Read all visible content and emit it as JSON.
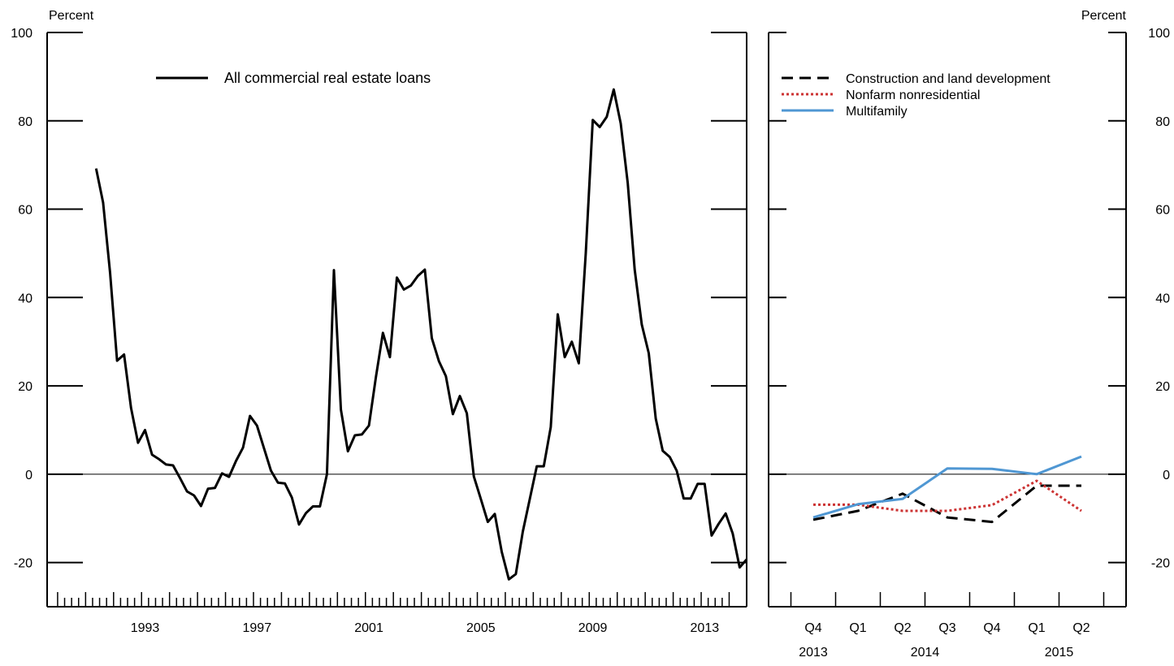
{
  "chart_data": [
    {
      "type": "line",
      "ylabel": "Percent",
      "ylim": [
        -30,
        100
      ],
      "yticks": [
        -20,
        0,
        20,
        40,
        60,
        80,
        100
      ],
      "xlim": [
        1989.5,
        2014.5
      ],
      "xticks": [
        1993,
        1997,
        2001,
        2005,
        2009,
        2013
      ],
      "xtick_labels": [
        "1993",
        "1997",
        "2001",
        "2005",
        "2009",
        "2013"
      ],
      "legend_position": "top-left",
      "series": [
        {
          "name": "All commercial real estate loans",
          "color": "#000000",
          "style": "solid",
          "points": [
            [
              1991.25,
              69.2
            ],
            [
              1991.5,
              61.5
            ],
            [
              1991.75,
              45.6
            ],
            [
              1992.0,
              25.7
            ],
            [
              1992.25,
              27.1
            ],
            [
              1992.5,
              15.0
            ],
            [
              1992.75,
              7.1
            ],
            [
              1993.0,
              10.0
            ],
            [
              1993.25,
              4.4
            ],
            [
              1993.5,
              3.4
            ],
            [
              1993.75,
              2.2
            ],
            [
              1994.0,
              2.0
            ],
            [
              1994.25,
              -0.9
            ],
            [
              1994.5,
              -3.9
            ],
            [
              1994.75,
              -4.8
            ],
            [
              1995.0,
              -7.2
            ],
            [
              1995.25,
              -3.3
            ],
            [
              1995.5,
              -3.1
            ],
            [
              1995.75,
              0.2
            ],
            [
              1996.0,
              -0.6
            ],
            [
              1996.25,
              3.0
            ],
            [
              1996.5,
              6.0
            ],
            [
              1996.75,
              13.2
            ],
            [
              1997.0,
              11.0
            ],
            [
              1997.25,
              5.9
            ],
            [
              1997.5,
              0.8
            ],
            [
              1997.75,
              -1.9
            ],
            [
              1998.0,
              -2.1
            ],
            [
              1998.25,
              -5.3
            ],
            [
              1998.5,
              -11.4
            ],
            [
              1998.75,
              -8.8
            ],
            [
              1999.0,
              -7.3
            ],
            [
              1999.25,
              -7.3
            ],
            [
              1999.5,
              0.0
            ],
            [
              1999.75,
              46.2
            ],
            [
              2000.0,
              14.6
            ],
            [
              2000.25,
              5.2
            ],
            [
              2000.5,
              8.8
            ],
            [
              2000.75,
              9.0
            ],
            [
              2001.0,
              11.0
            ],
            [
              2001.25,
              22.0
            ],
            [
              2001.5,
              32.0
            ],
            [
              2001.75,
              26.5
            ],
            [
              2002.0,
              44.5
            ],
            [
              2002.25,
              41.8
            ],
            [
              2002.5,
              42.7
            ],
            [
              2002.75,
              44.9
            ],
            [
              2003.0,
              46.3
            ],
            [
              2003.25,
              30.8
            ],
            [
              2003.5,
              25.6
            ],
            [
              2003.75,
              22.2
            ],
            [
              2004.0,
              13.6
            ],
            [
              2004.25,
              17.7
            ],
            [
              2004.5,
              13.8
            ],
            [
              2004.75,
              -0.5
            ],
            [
              2005.0,
              -5.6
            ],
            [
              2005.25,
              -10.8
            ],
            [
              2005.5,
              -9.0
            ],
            [
              2005.75,
              -17.6
            ],
            [
              2006.0,
              -23.8
            ],
            [
              2006.25,
              -22.6
            ],
            [
              2006.5,
              -13.0
            ],
            [
              2006.75,
              -5.6
            ],
            [
              2007.0,
              1.8
            ],
            [
              2007.25,
              1.8
            ],
            [
              2007.5,
              10.7
            ],
            [
              2007.75,
              36.2
            ],
            [
              2008.0,
              26.5
            ],
            [
              2008.25,
              30.0
            ],
            [
              2008.5,
              25.1
            ],
            [
              2008.75,
              50.1
            ],
            [
              2009.0,
              80.2
            ],
            [
              2009.25,
              78.6
            ],
            [
              2009.5,
              80.9
            ],
            [
              2009.75,
              87.1
            ],
            [
              2010.0,
              79.4
            ],
            [
              2010.25,
              66.0
            ],
            [
              2010.5,
              46.3
            ],
            [
              2010.75,
              33.9
            ],
            [
              2011.0,
              27.4
            ],
            [
              2011.25,
              12.6
            ],
            [
              2011.5,
              5.3
            ],
            [
              2011.75,
              3.9
            ],
            [
              2012.0,
              0.8
            ],
            [
              2012.25,
              -5.5
            ],
            [
              2012.5,
              -5.5
            ],
            [
              2012.75,
              -2.2
            ],
            [
              2013.0,
              -2.2
            ],
            [
              2013.25,
              -13.9
            ],
            [
              2013.5,
              -11.2
            ],
            [
              2013.75,
              -8.9
            ],
            [
              2014.0,
              -13.4
            ],
            [
              2014.25,
              -21.1
            ],
            [
              2014.5,
              -19.3
            ]
          ]
        }
      ]
    },
    {
      "type": "line",
      "ylabel": "Percent",
      "ylim": [
        -30,
        100
      ],
      "yticks": [
        -20,
        0,
        20,
        40,
        60,
        80,
        100
      ],
      "categories": [
        "Q4",
        "Q1",
        "Q2",
        "Q3",
        "Q4",
        "Q1",
        "Q2"
      ],
      "year_labels": [
        {
          "label": "2013",
          "category_index": 0
        },
        {
          "label": "2014",
          "category_index": 2.5
        },
        {
          "label": "2015",
          "category_index": 5.5
        }
      ],
      "legend_position": "top-left",
      "series": [
        {
          "name": "Construction and land development",
          "color": "#000000",
          "style": "dashed",
          "values": [
            -10.3,
            -8.3,
            -4.4,
            -9.8,
            -10.8,
            -2.6,
            -2.6
          ]
        },
        {
          "name": "Nonfarm nonresidential",
          "color": "#cc3333",
          "style": "dotted",
          "values": [
            -6.9,
            -6.9,
            -8.3,
            -8.3,
            -7.0,
            -1.5,
            -8.3
          ]
        },
        {
          "name": "Multifamily",
          "color": "#4f97d3",
          "style": "solid",
          "values": [
            -9.8,
            -6.8,
            -5.6,
            1.3,
            1.2,
            0.0,
            4.0
          ]
        }
      ]
    }
  ]
}
